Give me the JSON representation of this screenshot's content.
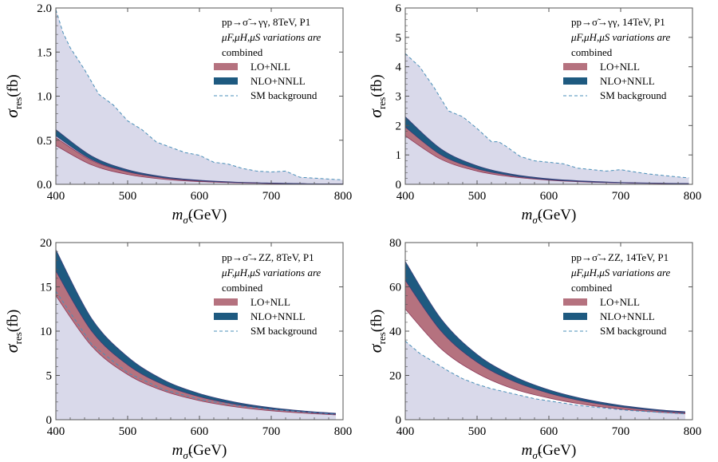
{
  "chart_data": [
    {
      "type": "area",
      "panel": "top-left",
      "title_line1": "pp→σ̃→γγ, 8TeV, P1",
      "title_line2": "μF,μH,μS variations are",
      "title_line3": "combined",
      "xlabel": "mσ̃(GeV)",
      "ylabel": "σres(fb)",
      "xlim": [
        400,
        800
      ],
      "ylim": [
        0,
        2.0
      ],
      "xticks": [
        400,
        500,
        600,
        700,
        800
      ],
      "yticks": [
        0,
        0.5,
        1.0,
        1.5,
        2.0
      ],
      "ytick_labels": [
        "0.0",
        "0.5",
        "1.0",
        "1.5",
        "2.0"
      ],
      "legend": {
        "lo_label": "LO+NLL",
        "nlo_label": "NLO+NNLL",
        "bg_label": "SM background"
      },
      "series": [
        {
          "name": "SM background",
          "x": [
            400,
            410,
            420,
            440,
            460,
            480,
            500,
            520,
            540,
            560,
            580,
            600,
            620,
            640,
            660,
            680,
            700,
            720,
            740,
            760,
            780,
            800
          ],
          "values": [
            1.98,
            1.72,
            1.55,
            1.3,
            1.02,
            0.9,
            0.72,
            0.62,
            0.48,
            0.42,
            0.36,
            0.33,
            0.25,
            0.23,
            0.18,
            0.15,
            0.14,
            0.15,
            0.08,
            0.07,
            0.06,
            0.05
          ]
        },
        {
          "name": "LO+NLL",
          "x": [
            400,
            450,
            500,
            550,
            600,
            650,
            700,
            750,
            800
          ],
          "lower": [
            0.44,
            0.22,
            0.112,
            0.058,
            0.031,
            0.017,
            0.009,
            0.005,
            0.003
          ],
          "upper": [
            0.53,
            0.27,
            0.14,
            0.073,
            0.039,
            0.021,
            0.011,
            0.006,
            0.003
          ]
        },
        {
          "name": "NLO+NNLL",
          "x": [
            400,
            450,
            500,
            550,
            600,
            650,
            700,
            750,
            800
          ],
          "lower": [
            0.55,
            0.28,
            0.145,
            0.075,
            0.04,
            0.022,
            0.012,
            0.006,
            0.003
          ],
          "upper": [
            0.62,
            0.32,
            0.165,
            0.086,
            0.046,
            0.025,
            0.014,
            0.007,
            0.004
          ]
        }
      ]
    },
    {
      "type": "area",
      "panel": "top-right",
      "title_line1": "pp→σ̃→γγ, 14TeV, P1",
      "title_line2": "μF,μH,μS variations are",
      "title_line3": "combined",
      "xlabel": "mσ̃(GeV)",
      "ylabel": "σres(fb)",
      "xlim": [
        400,
        800
      ],
      "ylim": [
        0,
        6
      ],
      "xticks": [
        400,
        500,
        600,
        700,
        800
      ],
      "yticks": [
        0,
        1,
        2,
        3,
        4,
        5,
        6
      ],
      "ytick_labels": [
        "0",
        "1",
        "2",
        "3",
        "4",
        "5",
        "6"
      ],
      "legend": {
        "lo_label": "LO+NLL",
        "nlo_label": "NLO+NNLL",
        "bg_label": "SM background"
      },
      "series": [
        {
          "name": "SM background",
          "x": [
            400,
            420,
            440,
            460,
            480,
            500,
            520,
            530,
            540,
            560,
            580,
            600,
            620,
            640,
            660,
            680,
            700,
            720,
            740,
            760,
            780,
            795
          ],
          "values": [
            4.45,
            4.0,
            3.3,
            2.5,
            2.3,
            1.9,
            1.45,
            1.45,
            1.3,
            0.95,
            0.8,
            0.75,
            0.7,
            0.55,
            0.5,
            0.45,
            0.5,
            0.42,
            0.35,
            0.3,
            0.25,
            0.22
          ]
        },
        {
          "name": "LO+NLL",
          "x": [
            400,
            450,
            500,
            550,
            600,
            650,
            700,
            750,
            795
          ],
          "lower": [
            1.65,
            0.85,
            0.45,
            0.25,
            0.14,
            0.08,
            0.05,
            0.03,
            0.02
          ],
          "upper": [
            1.95,
            1.0,
            0.53,
            0.29,
            0.16,
            0.09,
            0.055,
            0.033,
            0.022
          ]
        },
        {
          "name": "NLO+NNLL",
          "x": [
            400,
            450,
            500,
            550,
            600,
            650,
            700,
            750,
            795
          ],
          "lower": [
            1.95,
            1.0,
            0.53,
            0.29,
            0.16,
            0.09,
            0.055,
            0.033,
            0.022
          ],
          "upper": [
            2.3,
            1.2,
            0.63,
            0.34,
            0.19,
            0.11,
            0.065,
            0.04,
            0.026
          ]
        }
      ]
    },
    {
      "type": "area",
      "panel": "bottom-left",
      "title_line1": "pp→σ̃→ZZ, 8TeV, P1",
      "title_line2": "μF,μH,μS variations are",
      "title_line3": "combined",
      "xlabel": "mσ̃(GeV)",
      "ylabel": "σres(fb)",
      "xlim": [
        400,
        800
      ],
      "ylim": [
        0,
        20
      ],
      "xticks": [
        400,
        500,
        600,
        700,
        800
      ],
      "yticks": [
        0,
        5,
        10,
        15,
        20
      ],
      "ytick_labels": [
        "0",
        "5",
        "10",
        "15",
        "20"
      ],
      "legend": {
        "lo_label": "LO+NLL",
        "nlo_label": "NLO+NNLL",
        "bg_label": "SM background"
      },
      "series": [
        {
          "name": "SM background",
          "x": [
            400,
            450,
            500,
            550,
            600,
            650,
            700,
            750,
            790
          ],
          "values": [
            14.5,
            8.5,
            5.3,
            3.4,
            2.3,
            1.6,
            1.15,
            0.85,
            0.6
          ]
        },
        {
          "name": "LO+NLL",
          "x": [
            400,
            450,
            500,
            550,
            600,
            650,
            700,
            750,
            790
          ],
          "lower": [
            14.0,
            8.3,
            5.1,
            3.25,
            2.15,
            1.45,
            1.0,
            0.72,
            0.55
          ],
          "upper": [
            16.8,
            10.0,
            6.2,
            3.95,
            2.6,
            1.75,
            1.2,
            0.85,
            0.63
          ]
        },
        {
          "name": "NLO+NNLL",
          "x": [
            400,
            450,
            500,
            550,
            600,
            650,
            700,
            750,
            790
          ],
          "lower": [
            16.8,
            10.0,
            6.2,
            3.95,
            2.6,
            1.75,
            1.2,
            0.85,
            0.63
          ],
          "upper": [
            19.2,
            11.4,
            7.1,
            4.5,
            2.95,
            1.98,
            1.36,
            0.95,
            0.72
          ]
        }
      ]
    },
    {
      "type": "area",
      "panel": "bottom-right",
      "title_line1": "pp→σ̃→ZZ, 14TeV, P1",
      "title_line2": "μF,μH,μS variations are",
      "title_line3": "combined",
      "xlabel": "mσ̃(GeV)",
      "ylabel": "σres(fb)",
      "xlim": [
        400,
        800
      ],
      "ylim": [
        0,
        80
      ],
      "xticks": [
        400,
        500,
        600,
        700,
        800
      ],
      "yticks": [
        0,
        20,
        40,
        60,
        80
      ],
      "ytick_labels": [
        "0",
        "20",
        "40",
        "60",
        "80"
      ],
      "legend": {
        "lo_label": "LO+NLL",
        "nlo_label": "NLO+NNLL",
        "bg_label": "SM background"
      },
      "series": [
        {
          "name": "SM background",
          "x": [
            400,
            420,
            440,
            460,
            480,
            500,
            520,
            540,
            560,
            580,
            600,
            620,
            640,
            660,
            680,
            700,
            720,
            740,
            760,
            780,
            790
          ],
          "values": [
            35.5,
            30.0,
            26.0,
            22.0,
            18.5,
            16.0,
            14.0,
            12.5,
            11.0,
            9.5,
            8.5,
            7.5,
            6.5,
            5.8,
            5.2,
            4.5,
            4.0,
            3.6,
            3.2,
            2.8,
            2.6
          ]
        },
        {
          "name": "LO+NLL",
          "x": [
            400,
            450,
            500,
            550,
            600,
            650,
            700,
            750,
            790
          ],
          "lower": [
            50.0,
            32.0,
            21.0,
            14.0,
            9.8,
            6.8,
            4.8,
            3.5,
            2.7
          ],
          "upper": [
            63.0,
            40.0,
            26.0,
            17.5,
            12.0,
            8.3,
            5.8,
            4.1,
            3.2
          ]
        },
        {
          "name": "NLO+NNLL",
          "x": [
            400,
            450,
            500,
            550,
            600,
            650,
            700,
            750,
            790
          ],
          "lower": [
            63.0,
            40.0,
            26.0,
            17.5,
            12.0,
            8.3,
            5.8,
            4.1,
            3.2
          ],
          "upper": [
            71.5,
            45.5,
            29.5,
            19.8,
            13.5,
            9.3,
            6.5,
            4.6,
            3.6
          ]
        }
      ]
    }
  ],
  "colors": {
    "background_fill": "#d9d9ea",
    "background_line": "#4a8fb8",
    "lo_fill": "#b5727f",
    "lo_edge": "#8e3a5a",
    "nlo_fill": "#1e5a80",
    "nlo_edge": "#3a3f7a",
    "frame": "#555555"
  }
}
